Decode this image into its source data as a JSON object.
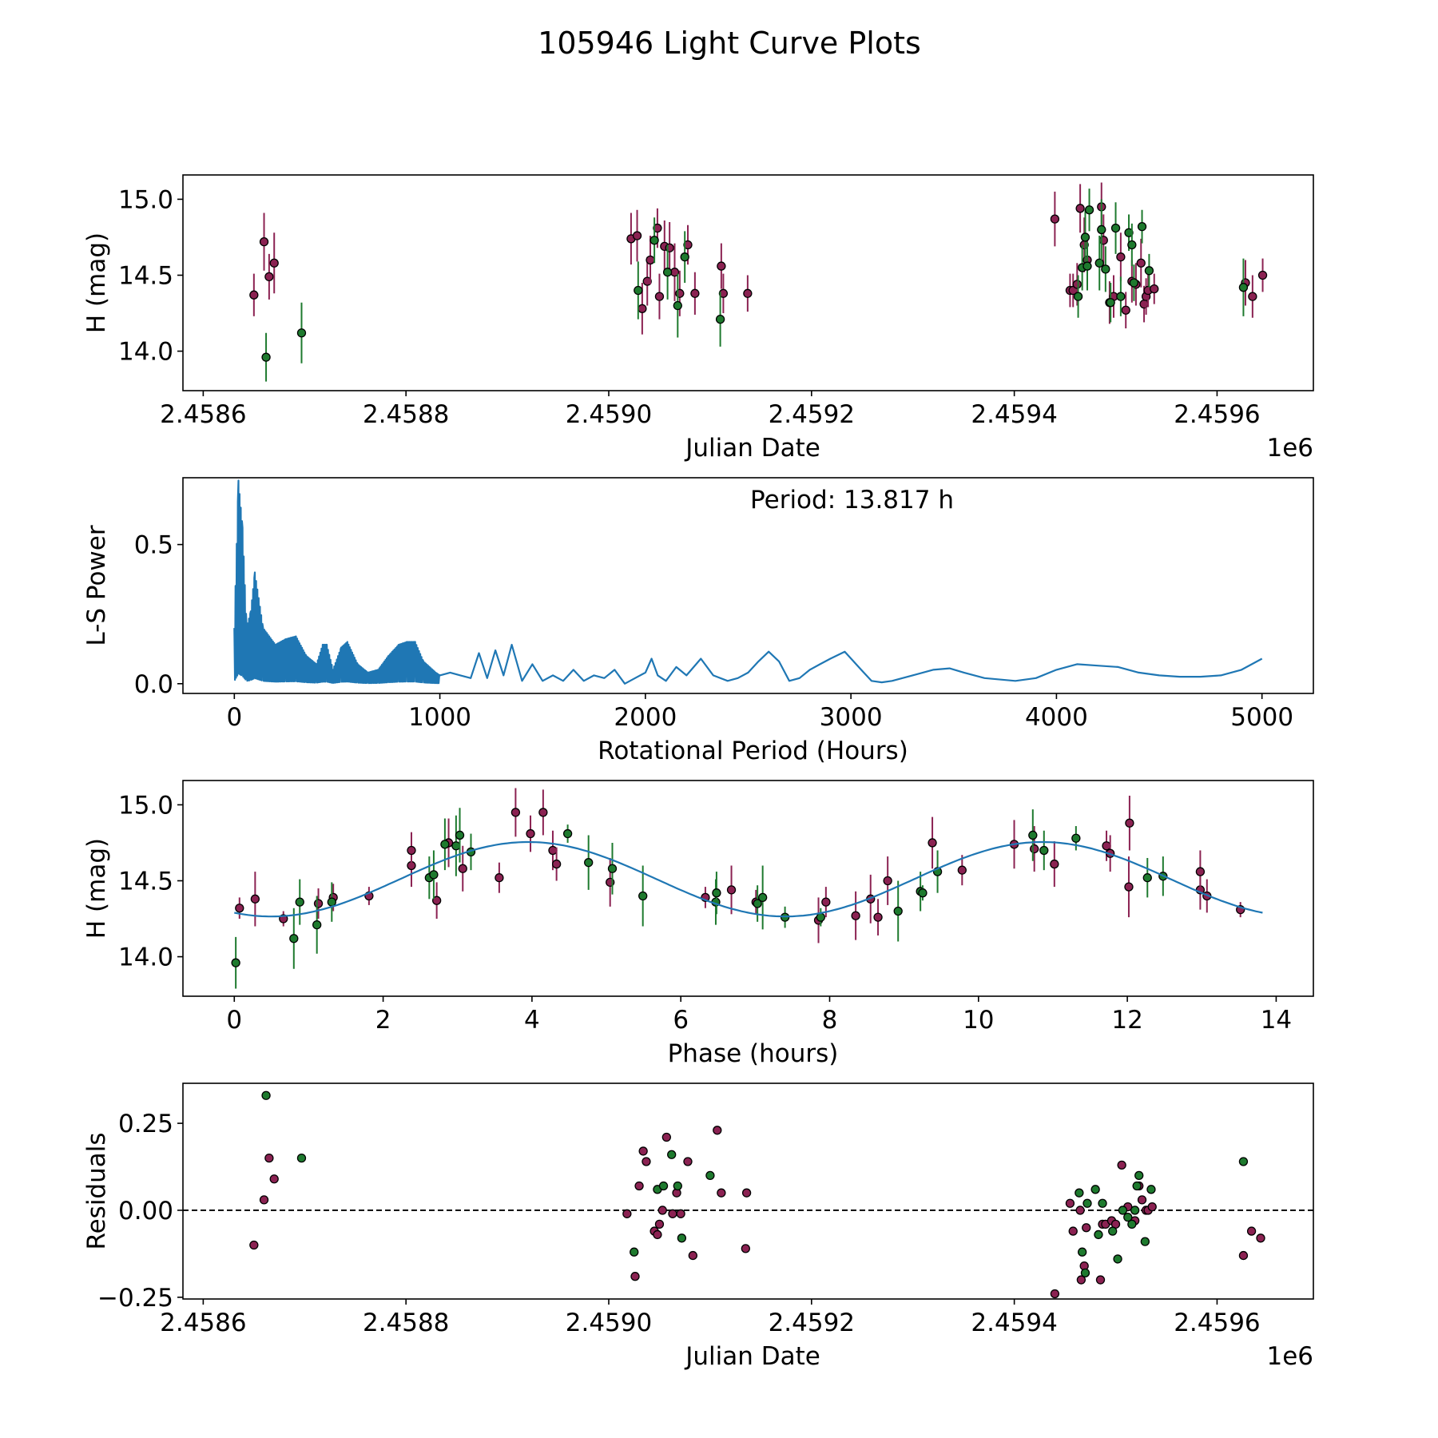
{
  "figure_title": "105946 Light Curve Plots",
  "colors": {
    "purple": "#8b2252",
    "green": "#1e7a2e",
    "line": "#1f77b4",
    "frame": "#000000"
  },
  "chart_data": [
    {
      "id": "raw",
      "type": "scatter",
      "title": "",
      "xlabel": "Julian Date",
      "ylabel": "H (mag)",
      "x_offset_label": "1e6",
      "xlim": [
        2.45858,
        2.459695
      ],
      "ylim": [
        13.74,
        15.16
      ],
      "xticks": [
        2.4586,
        2.4588,
        2.459,
        2.4592,
        2.4594,
        2.4596
      ],
      "xtick_labels": [
        "2.4586",
        "2.4588",
        "2.4590",
        "2.4592",
        "2.4594",
        "2.4596"
      ],
      "yticks": [
        14.0,
        14.5,
        15.0
      ],
      "ytick_labels": [
        "14.0",
        "14.5",
        "15.0"
      ],
      "series": [
        {
          "name": "purple",
          "color": "#8b2252",
          "errorbars": true,
          "x": [
            2.45865,
            2.45866,
            2.458665,
            2.45867,
            2.459022,
            2.459028,
            2.459033,
            2.459038,
            2.459041,
            2.459048,
            2.45905,
            2.459055,
            2.45906,
            2.459065,
            2.45907,
            2.459078,
            2.459085,
            2.459111,
            2.459113,
            2.459137,
            2.45944,
            2.459455,
            2.459458,
            2.459462,
            2.459465,
            2.459469,
            2.459472,
            2.459486,
            2.459488,
            2.459494,
            2.459498,
            2.459505,
            2.45951,
            2.459516,
            2.45952,
            2.459525,
            2.459528,
            2.45953,
            2.459532,
            2.459538,
            2.459628,
            2.459635,
            2.459645
          ],
          "y": [
            14.37,
            14.72,
            14.49,
            14.58,
            14.74,
            14.76,
            14.28,
            14.46,
            14.6,
            14.81,
            14.36,
            14.69,
            14.68,
            14.52,
            14.38,
            14.7,
            14.38,
            14.56,
            14.38,
            14.38,
            14.87,
            14.4,
            14.4,
            14.44,
            14.94,
            14.7,
            14.6,
            14.95,
            14.73,
            14.32,
            14.36,
            14.62,
            14.27,
            14.46,
            14.44,
            14.58,
            14.31,
            14.36,
            14.4,
            14.41,
            14.45,
            14.36,
            14.5
          ],
          "err": [
            0.14,
            0.19,
            0.15,
            0.2,
            0.17,
            0.17,
            0.17,
            0.16,
            0.16,
            0.13,
            0.15,
            0.17,
            0.17,
            0.19,
            0.15,
            0.13,
            0.14,
            0.15,
            0.13,
            0.12,
            0.18,
            0.11,
            0.11,
            0.14,
            0.16,
            0.18,
            0.15,
            0.16,
            0.17,
            0.14,
            0.14,
            0.16,
            0.12,
            0.14,
            0.14,
            0.16,
            0.12,
            0.12,
            0.11,
            0.1,
            0.15,
            0.14,
            0.11
          ]
        },
        {
          "name": "green",
          "color": "#1e7a2e",
          "errorbars": true,
          "x": [
            2.458662,
            2.458697,
            2.459029,
            2.459045,
            2.459058,
            2.459068,
            2.459075,
            2.45911,
            2.459463,
            2.459467,
            2.45947,
            2.459472,
            2.459474,
            2.459484,
            2.459486,
            2.45949,
            2.459495,
            2.4595,
            2.459505,
            2.459513,
            2.459516,
            2.459518,
            2.459526,
            2.459533,
            2.459626
          ],
          "y": [
            13.96,
            14.12,
            14.4,
            14.73,
            14.52,
            14.3,
            14.62,
            14.21,
            14.36,
            14.55,
            14.75,
            14.56,
            14.93,
            14.58,
            14.8,
            14.54,
            14.32,
            14.81,
            14.36,
            14.78,
            14.7,
            14.45,
            14.82,
            14.53,
            14.42
          ],
          "err": [
            0.16,
            0.2,
            0.19,
            0.15,
            0.18,
            0.21,
            0.17,
            0.18,
            0.14,
            0.15,
            0.18,
            0.16,
            0.14,
            0.18,
            0.2,
            0.15,
            0.13,
            0.17,
            0.13,
            0.12,
            0.14,
            0.12,
            0.11,
            0.11,
            0.19
          ]
        }
      ]
    },
    {
      "id": "periodogram",
      "type": "line",
      "title": "",
      "xlabel": "Rotational Period (Hours)",
      "ylabel": "L-S Power",
      "annotation": "Period: 13.817 h",
      "xlim": [
        -250,
        5250
      ],
      "ylim": [
        -0.035,
        0.74
      ],
      "xticks": [
        0,
        1000,
        2000,
        3000,
        4000,
        5000
      ],
      "xtick_labels": [
        "0",
        "1000",
        "2000",
        "3000",
        "4000",
        "5000"
      ],
      "yticks": [
        0.0,
        0.5
      ],
      "ytick_labels": [
        "0.0",
        "0.5"
      ],
      "series": [
        {
          "name": "power",
          "color": "#1f77b4",
          "peak_period": 13.817,
          "peak_power": 0.73,
          "envelope": [
            [
              0,
              0.2
            ],
            [
              20,
              0.73
            ],
            [
              40,
              0.56
            ],
            [
              60,
              0.2
            ],
            [
              80,
              0.26
            ],
            [
              100,
              0.4
            ],
            [
              140,
              0.2
            ],
            [
              200,
              0.14
            ],
            [
              250,
              0.16
            ],
            [
              300,
              0.17
            ],
            [
              350,
              0.1
            ],
            [
              400,
              0.07
            ],
            [
              430,
              0.14
            ],
            [
              450,
              0.14
            ],
            [
              480,
              0.05
            ],
            [
              520,
              0.13
            ],
            [
              550,
              0.15
            ],
            [
              600,
              0.07
            ],
            [
              650,
              0.04
            ],
            [
              700,
              0.05
            ],
            [
              750,
              0.1
            ],
            [
              800,
              0.14
            ],
            [
              840,
              0.15
            ],
            [
              880,
              0.15
            ],
            [
              920,
              0.08
            ],
            [
              980,
              0.04
            ],
            [
              1000,
              0.03
            ]
          ],
          "x": [
            1000,
            1050,
            1100,
            1150,
            1190,
            1230,
            1270,
            1310,
            1350,
            1400,
            1450,
            1500,
            1550,
            1600,
            1650,
            1700,
            1750,
            1800,
            1850,
            1900,
            1950,
            2000,
            2030,
            2060,
            2100,
            2150,
            2200,
            2270,
            2330,
            2400,
            2450,
            2500,
            2550,
            2600,
            2650,
            2700,
            2750,
            2800,
            2850,
            2900,
            2970,
            3050,
            3100,
            3150,
            3200,
            3300,
            3400,
            3480,
            3550,
            3650,
            3800,
            3900,
            4000,
            4100,
            4200,
            4300,
            4400,
            4500,
            4600,
            4700,
            4800,
            4900,
            5000
          ],
          "y": [
            0.03,
            0.04,
            0.03,
            0.02,
            0.11,
            0.02,
            0.12,
            0.03,
            0.14,
            0.01,
            0.07,
            0.01,
            0.03,
            0.01,
            0.05,
            0.01,
            0.03,
            0.02,
            0.05,
            0.0,
            0.02,
            0.04,
            0.09,
            0.03,
            0.01,
            0.06,
            0.03,
            0.09,
            0.03,
            0.01,
            0.02,
            0.04,
            0.08,
            0.115,
            0.08,
            0.01,
            0.02,
            0.05,
            0.07,
            0.09,
            0.115,
            0.05,
            0.01,
            0.005,
            0.01,
            0.03,
            0.05,
            0.055,
            0.04,
            0.02,
            0.01,
            0.02,
            0.05,
            0.07,
            0.065,
            0.06,
            0.04,
            0.03,
            0.025,
            0.025,
            0.03,
            0.05,
            0.09
          ]
        }
      ]
    },
    {
      "id": "phased",
      "type": "scatter",
      "title": "",
      "xlabel": "Phase (hours)",
      "ylabel": "H (mag)",
      "xlim": [
        -0.69,
        14.5
      ],
      "ylim": [
        13.74,
        15.16
      ],
      "xticks": [
        0,
        2,
        4,
        6,
        8,
        10,
        12,
        14
      ],
      "xtick_labels": [
        "0",
        "2",
        "4",
        "6",
        "8",
        "10",
        "12",
        "14"
      ],
      "yticks": [
        14.0,
        14.5,
        15.0
      ],
      "ytick_labels": [
        "14.0",
        "14.5",
        "15.0"
      ],
      "series": [
        {
          "name": "purple",
          "color": "#8b2252",
          "errorbars": true,
          "x": [
            0.07,
            0.28,
            0.66,
            1.13,
            1.33,
            1.81,
            2.38,
            2.38,
            2.72,
            2.88,
            3.07,
            3.56,
            3.78,
            3.98,
            4.15,
            4.28,
            4.33,
            5.05,
            6.33,
            6.68,
            7.01,
            7.85,
            7.95,
            8.35,
            8.55,
            8.65,
            8.78,
            9.38,
            9.78,
            10.48,
            10.75,
            11.02,
            11.72,
            11.77,
            12.03,
            12.98,
            13.07,
            13.52,
            12.02,
            12.98
          ],
          "y": [
            14.32,
            14.38,
            14.25,
            14.35,
            14.39,
            14.4,
            14.6,
            14.7,
            14.37,
            14.75,
            14.58,
            14.52,
            14.95,
            14.81,
            14.95,
            14.7,
            14.61,
            14.49,
            14.39,
            14.44,
            14.36,
            14.24,
            14.36,
            14.27,
            14.38,
            14.26,
            14.5,
            14.75,
            14.57,
            14.74,
            14.71,
            14.61,
            14.73,
            14.68,
            14.88,
            14.44,
            14.4,
            14.31,
            14.46,
            14.56
          ],
          "err": [
            0.07,
            0.18,
            0.05,
            0.1,
            0.09,
            0.06,
            0.14,
            0.12,
            0.12,
            0.16,
            0.15,
            0.1,
            0.16,
            0.12,
            0.15,
            0.13,
            0.11,
            0.16,
            0.07,
            0.16,
            0.08,
            0.15,
            0.1,
            0.16,
            0.16,
            0.12,
            0.16,
            0.17,
            0.1,
            0.16,
            0.15,
            0.15,
            0.1,
            0.12,
            0.18,
            0.13,
            0.11,
            0.05,
            0.2,
            0.14
          ]
        },
        {
          "name": "green",
          "color": "#1e7a2e",
          "errorbars": true,
          "x": [
            0.02,
            0.8,
            0.88,
            1.11,
            1.31,
            2.62,
            2.68,
            2.83,
            2.98,
            3.03,
            3.18,
            4.48,
            4.76,
            5.08,
            5.49,
            6.47,
            6.48,
            7.03,
            7.1,
            7.4,
            7.88,
            8.92,
            9.22,
            9.25,
            9.45,
            10.73,
            10.88,
            11.31,
            12.27,
            12.48
          ],
          "y": [
            13.96,
            14.12,
            14.36,
            14.21,
            14.36,
            14.52,
            14.54,
            14.74,
            14.73,
            14.8,
            14.69,
            14.81,
            14.62,
            14.58,
            14.4,
            14.36,
            14.42,
            14.35,
            14.39,
            14.26,
            14.26,
            14.3,
            14.43,
            14.42,
            14.56,
            14.8,
            14.7,
            14.78,
            14.52,
            14.53
          ],
          "err": [
            0.17,
            0.2,
            0.15,
            0.19,
            0.13,
            0.14,
            0.16,
            0.17,
            0.2,
            0.18,
            0.12,
            0.06,
            0.18,
            0.17,
            0.2,
            0.15,
            0.14,
            0.12,
            0.21,
            0.07,
            0.06,
            0.2,
            0.13,
            0.05,
            0.14,
            0.17,
            0.13,
            0.08,
            0.13,
            0.13
          ]
        },
        {
          "name": "fit",
          "color": "#1f77b4",
          "type": "line",
          "model": "sinusoid",
          "mean": 14.51,
          "amplitude": 0.245,
          "period_hours": 6.9085,
          "peak_phase": 3.95,
          "x_range": [
            0,
            13.817
          ]
        }
      ]
    },
    {
      "id": "residuals",
      "type": "scatter",
      "title": "",
      "xlabel": "Julian Date",
      "ylabel": "Residuals",
      "x_offset_label": "1e6",
      "xlim": [
        2.45858,
        2.459695
      ],
      "ylim": [
        -0.255,
        0.365
      ],
      "xticks": [
        2.4586,
        2.4588,
        2.459,
        2.4592,
        2.4594,
        2.4596
      ],
      "xtick_labels": [
        "2.4586",
        "2.4588",
        "2.4590",
        "2.4592",
        "2.4594",
        "2.4596"
      ],
      "yticks": [
        -0.25,
        0.0,
        0.25
      ],
      "ytick_labels": [
        "−0.25",
        "0.00",
        "0.25"
      ],
      "reference_line": 0.0,
      "series": [
        {
          "name": "purple",
          "color": "#8b2252",
          "errorbars": false,
          "x": [
            2.45865,
            2.45866,
            2.458665,
            2.45867,
            2.459018,
            2.459026,
            2.45903,
            2.459034,
            2.459037,
            2.459045,
            2.459048,
            2.45905,
            2.459053,
            2.459057,
            2.459063,
            2.459067,
            2.459071,
            2.459078,
            2.459083,
            2.459107,
            2.459111,
            2.459135,
            2.459136,
            2.45944,
            2.459455,
            2.459458,
            2.459465,
            2.459466,
            2.459469,
            2.459471,
            2.459485,
            2.459487,
            2.45949,
            2.459496,
            2.4595,
            2.459506,
            2.459512,
            2.459519,
            2.459523,
            2.459526,
            2.45953,
            2.459532,
            2.459536,
            2.459626,
            2.459634,
            2.459643
          ],
          "y": [
            -0.1,
            0.03,
            0.15,
            0.09,
            -0.01,
            -0.19,
            0.07,
            0.17,
            0.14,
            -0.06,
            -0.07,
            -0.04,
            0.0,
            0.21,
            -0.01,
            0.05,
            -0.01,
            0.14,
            -0.13,
            0.23,
            0.05,
            -0.11,
            0.05,
            -0.24,
            0.02,
            -0.06,
            0.0,
            -0.2,
            -0.16,
            -0.05,
            -0.2,
            -0.04,
            -0.04,
            -0.03,
            -0.04,
            0.13,
            0.01,
            -0.03,
            0.07,
            0.03,
            0.0,
            0.0,
            0.01,
            -0.13,
            -0.06,
            -0.08
          ],
          "marker_only": true
        },
        {
          "name": "green",
          "color": "#1e7a2e",
          "errorbars": false,
          "x": [
            2.458662,
            2.458697,
            2.459025,
            2.459048,
            2.459054,
            2.459062,
            2.459068,
            2.459072,
            2.4591,
            2.459464,
            2.459467,
            2.45947,
            2.459472,
            2.45948,
            2.459483,
            2.459487,
            2.459497,
            2.459502,
            2.459507,
            2.459512,
            2.459516,
            2.459519,
            2.459521,
            2.459523,
            2.459529,
            2.459535,
            2.459626
          ],
          "y": [
            0.33,
            0.15,
            -0.12,
            0.06,
            0.07,
            0.16,
            0.07,
            -0.08,
            0.1,
            0.05,
            -0.12,
            -0.18,
            0.02,
            0.06,
            -0.07,
            0.02,
            -0.06,
            -0.14,
            0.0,
            -0.02,
            -0.04,
            0.0,
            0.07,
            0.1,
            -0.09,
            0.06,
            0.14
          ],
          "marker_only": true
        }
      ]
    }
  ]
}
